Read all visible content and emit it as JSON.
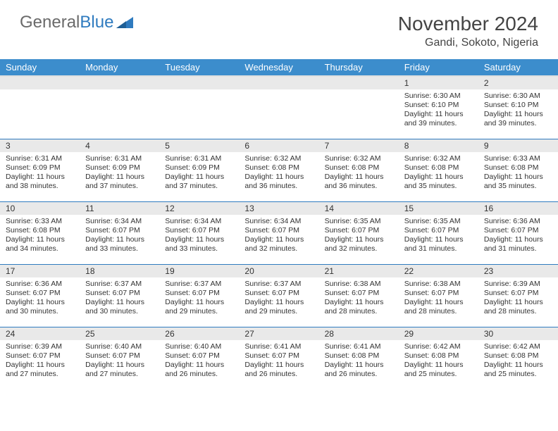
{
  "brand": {
    "part1": "General",
    "part2": "Blue"
  },
  "title": "November 2024",
  "location": "Gandi, Sokoto, Nigeria",
  "colors": {
    "header_bg": "#3c8dcc",
    "header_text": "#ffffff",
    "cell_border": "#2f7bbf",
    "daynum_bg": "#e9e9e9",
    "text": "#333333",
    "logo_gray": "#6a6a6a",
    "logo_blue": "#2f7bbf"
  },
  "weekdays": [
    "Sunday",
    "Monday",
    "Tuesday",
    "Wednesday",
    "Thursday",
    "Friday",
    "Saturday"
  ],
  "weeks": [
    [
      {
        "n": "",
        "lines": []
      },
      {
        "n": "",
        "lines": []
      },
      {
        "n": "",
        "lines": []
      },
      {
        "n": "",
        "lines": []
      },
      {
        "n": "",
        "lines": []
      },
      {
        "n": "1",
        "lines": [
          "Sunrise: 6:30 AM",
          "Sunset: 6:10 PM",
          "Daylight: 11 hours and 39 minutes."
        ]
      },
      {
        "n": "2",
        "lines": [
          "Sunrise: 6:30 AM",
          "Sunset: 6:10 PM",
          "Daylight: 11 hours and 39 minutes."
        ]
      }
    ],
    [
      {
        "n": "3",
        "lines": [
          "Sunrise: 6:31 AM",
          "Sunset: 6:09 PM",
          "Daylight: 11 hours and 38 minutes."
        ]
      },
      {
        "n": "4",
        "lines": [
          "Sunrise: 6:31 AM",
          "Sunset: 6:09 PM",
          "Daylight: 11 hours and 37 minutes."
        ]
      },
      {
        "n": "5",
        "lines": [
          "Sunrise: 6:31 AM",
          "Sunset: 6:09 PM",
          "Daylight: 11 hours and 37 minutes."
        ]
      },
      {
        "n": "6",
        "lines": [
          "Sunrise: 6:32 AM",
          "Sunset: 6:08 PM",
          "Daylight: 11 hours and 36 minutes."
        ]
      },
      {
        "n": "7",
        "lines": [
          "Sunrise: 6:32 AM",
          "Sunset: 6:08 PM",
          "Daylight: 11 hours and 36 minutes."
        ]
      },
      {
        "n": "8",
        "lines": [
          "Sunrise: 6:32 AM",
          "Sunset: 6:08 PM",
          "Daylight: 11 hours and 35 minutes."
        ]
      },
      {
        "n": "9",
        "lines": [
          "Sunrise: 6:33 AM",
          "Sunset: 6:08 PM",
          "Daylight: 11 hours and 35 minutes."
        ]
      }
    ],
    [
      {
        "n": "10",
        "lines": [
          "Sunrise: 6:33 AM",
          "Sunset: 6:08 PM",
          "Daylight: 11 hours and 34 minutes."
        ]
      },
      {
        "n": "11",
        "lines": [
          "Sunrise: 6:34 AM",
          "Sunset: 6:07 PM",
          "Daylight: 11 hours and 33 minutes."
        ]
      },
      {
        "n": "12",
        "lines": [
          "Sunrise: 6:34 AM",
          "Sunset: 6:07 PM",
          "Daylight: 11 hours and 33 minutes."
        ]
      },
      {
        "n": "13",
        "lines": [
          "Sunrise: 6:34 AM",
          "Sunset: 6:07 PM",
          "Daylight: 11 hours and 32 minutes."
        ]
      },
      {
        "n": "14",
        "lines": [
          "Sunrise: 6:35 AM",
          "Sunset: 6:07 PM",
          "Daylight: 11 hours and 32 minutes."
        ]
      },
      {
        "n": "15",
        "lines": [
          "Sunrise: 6:35 AM",
          "Sunset: 6:07 PM",
          "Daylight: 11 hours and 31 minutes."
        ]
      },
      {
        "n": "16",
        "lines": [
          "Sunrise: 6:36 AM",
          "Sunset: 6:07 PM",
          "Daylight: 11 hours and 31 minutes."
        ]
      }
    ],
    [
      {
        "n": "17",
        "lines": [
          "Sunrise: 6:36 AM",
          "Sunset: 6:07 PM",
          "Daylight: 11 hours and 30 minutes."
        ]
      },
      {
        "n": "18",
        "lines": [
          "Sunrise: 6:37 AM",
          "Sunset: 6:07 PM",
          "Daylight: 11 hours and 30 minutes."
        ]
      },
      {
        "n": "19",
        "lines": [
          "Sunrise: 6:37 AM",
          "Sunset: 6:07 PM",
          "Daylight: 11 hours and 29 minutes."
        ]
      },
      {
        "n": "20",
        "lines": [
          "Sunrise: 6:37 AM",
          "Sunset: 6:07 PM",
          "Daylight: 11 hours and 29 minutes."
        ]
      },
      {
        "n": "21",
        "lines": [
          "Sunrise: 6:38 AM",
          "Sunset: 6:07 PM",
          "Daylight: 11 hours and 28 minutes."
        ]
      },
      {
        "n": "22",
        "lines": [
          "Sunrise: 6:38 AM",
          "Sunset: 6:07 PM",
          "Daylight: 11 hours and 28 minutes."
        ]
      },
      {
        "n": "23",
        "lines": [
          "Sunrise: 6:39 AM",
          "Sunset: 6:07 PM",
          "Daylight: 11 hours and 28 minutes."
        ]
      }
    ],
    [
      {
        "n": "24",
        "lines": [
          "Sunrise: 6:39 AM",
          "Sunset: 6:07 PM",
          "Daylight: 11 hours and 27 minutes."
        ]
      },
      {
        "n": "25",
        "lines": [
          "Sunrise: 6:40 AM",
          "Sunset: 6:07 PM",
          "Daylight: 11 hours and 27 minutes."
        ]
      },
      {
        "n": "26",
        "lines": [
          "Sunrise: 6:40 AM",
          "Sunset: 6:07 PM",
          "Daylight: 11 hours and 26 minutes."
        ]
      },
      {
        "n": "27",
        "lines": [
          "Sunrise: 6:41 AM",
          "Sunset: 6:07 PM",
          "Daylight: 11 hours and 26 minutes."
        ]
      },
      {
        "n": "28",
        "lines": [
          "Sunrise: 6:41 AM",
          "Sunset: 6:08 PM",
          "Daylight: 11 hours and 26 minutes."
        ]
      },
      {
        "n": "29",
        "lines": [
          "Sunrise: 6:42 AM",
          "Sunset: 6:08 PM",
          "Daylight: 11 hours and 25 minutes."
        ]
      },
      {
        "n": "30",
        "lines": [
          "Sunrise: 6:42 AM",
          "Sunset: 6:08 PM",
          "Daylight: 11 hours and 25 minutes."
        ]
      }
    ]
  ]
}
